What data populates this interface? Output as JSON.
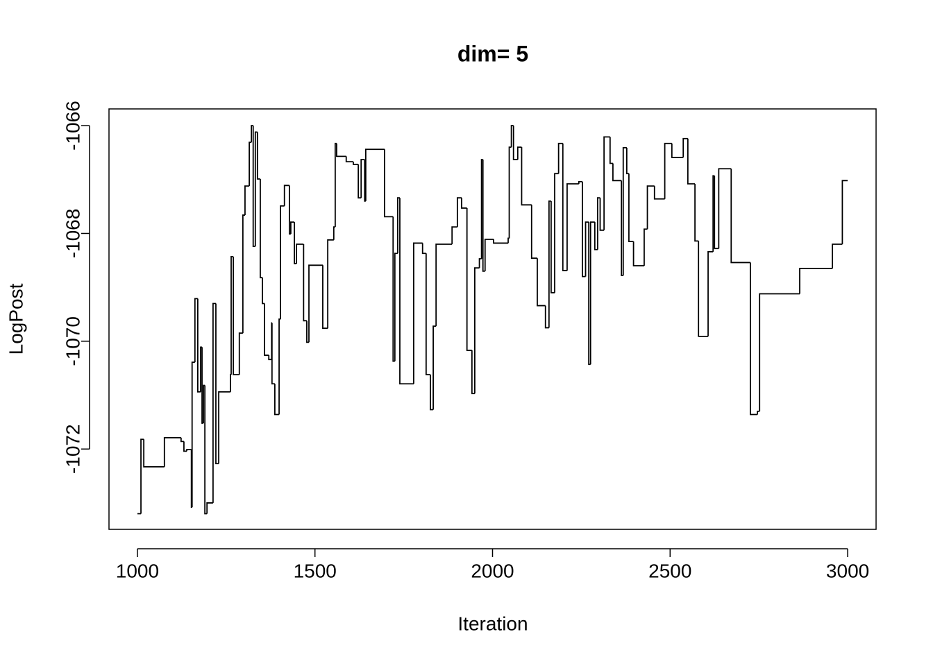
{
  "chart_data": {
    "type": "line",
    "step": "post",
    "title": "dim= 5",
    "x_label": "Iteration",
    "y_label": "LogPost",
    "color": "#000000",
    "xlim": [
      920,
      3080
    ],
    "ylim": [
      -1073.49,
      -1065.69
    ],
    "xticks": [
      1000,
      1500,
      2000,
      2500,
      3000
    ],
    "yticks": [
      -1066,
      -1068,
      -1070,
      -1072
    ],
    "x": [
      1000,
      1010,
      1018,
      1076,
      1123,
      1131,
      1139,
      1152,
      1154,
      1162,
      1170,
      1178,
      1182,
      1186,
      1190,
      1196,
      1213,
      1221,
      1229,
      1262,
      1264,
      1270,
      1287,
      1297,
      1303,
      1315,
      1321,
      1326,
      1332,
      1338,
      1346,
      1352,
      1358,
      1370,
      1378,
      1379,
      1387,
      1399,
      1403,
      1414,
      1428,
      1432,
      1442,
      1448,
      1468,
      1477,
      1483,
      1522,
      1536,
      1553,
      1557,
      1561,
      1588,
      1608,
      1622,
      1630,
      1640,
      1643,
      1696,
      1720,
      1725,
      1733,
      1739,
      1778,
      1803,
      1813,
      1825,
      1833,
      1841,
      1886,
      1901,
      1913,
      1928,
      1942,
      1950,
      1963,
      1969,
      1973,
      1979,
      2003,
      2044,
      2047,
      2053,
      2059,
      2071,
      2082,
      2110,
      2126,
      2149,
      2159,
      2165,
      2175,
      2186,
      2198,
      2210,
      2243,
      2253,
      2262,
      2271,
      2276,
      2288,
      2296,
      2303,
      2314,
      2331,
      2339,
      2363,
      2368,
      2378,
      2384,
      2397,
      2427,
      2436,
      2456,
      2485,
      2505,
      2537,
      2550,
      2570,
      2580,
      2607,
      2621,
      2625,
      2637,
      2672,
      2726,
      2746,
      2752,
      2865,
      2957,
      2985,
      3000
    ],
    "values": [
      -1073.2,
      -1071.82,
      -1072.33,
      -1071.79,
      -1071.86,
      -1072.04,
      -1072.01,
      -1073.08,
      -1070.39,
      -1069.21,
      -1070.94,
      -1070.11,
      -1071.52,
      -1070.82,
      -1073.2,
      -1073.0,
      -1069.3,
      -1072.27,
      -1070.94,
      -1070.62,
      -1068.43,
      -1070.62,
      -1069.85,
      -1067.66,
      -1067.12,
      -1066.31,
      -1066.0,
      -1068.24,
      -1066.12,
      -1066.99,
      -1068.82,
      -1069.3,
      -1070.26,
      -1070.34,
      -1069.66,
      -1070.79,
      -1071.36,
      -1069.59,
      -1067.49,
      -1067.11,
      -1068.01,
      -1067.79,
      -1068.56,
      -1068.2,
      -1069.62,
      -1070.02,
      -1068.59,
      -1069.76,
      -1068.12,
      -1067.88,
      -1066.33,
      -1066.57,
      -1066.67,
      -1066.72,
      -1067.34,
      -1066.63,
      -1067.4,
      -1066.44,
      -1067.69,
      -1070.37,
      -1068.37,
      -1067.34,
      -1070.79,
      -1068.18,
      -1068.37,
      -1070.62,
      -1071.27,
      -1069.72,
      -1068.2,
      -1067.88,
      -1067.34,
      -1067.53,
      -1070.17,
      -1070.97,
      -1068.64,
      -1068.47,
      -1066.63,
      -1068.7,
      -1068.11,
      -1068.18,
      -1068.09,
      -1066.4,
      -1066.0,
      -1066.63,
      -1066.4,
      -1067.47,
      -1068.46,
      -1069.34,
      -1069.75,
      -1067.4,
      -1069.1,
      -1066.89,
      -1066.33,
      -1068.69,
      -1067.08,
      -1067.04,
      -1068.8,
      -1067.79,
      -1070.43,
      -1067.79,
      -1068.3,
      -1067.34,
      -1067.94,
      -1066.21,
      -1066.7,
      -1067.02,
      -1068.78,
      -1066.41,
      -1066.89,
      -1068.15,
      -1068.6,
      -1067.92,
      -1067.12,
      -1067.36,
      -1066.33,
      -1066.59,
      -1066.24,
      -1067.08,
      -1068.14,
      -1069.91,
      -1068.34,
      -1066.93,
      -1068.28,
      -1066.8,
      -1068.54,
      -1071.36,
      -1071.3,
      -1069.12,
      -1068.65,
      -1068.2,
      -1067.02,
      -1067.02
    ]
  }
}
